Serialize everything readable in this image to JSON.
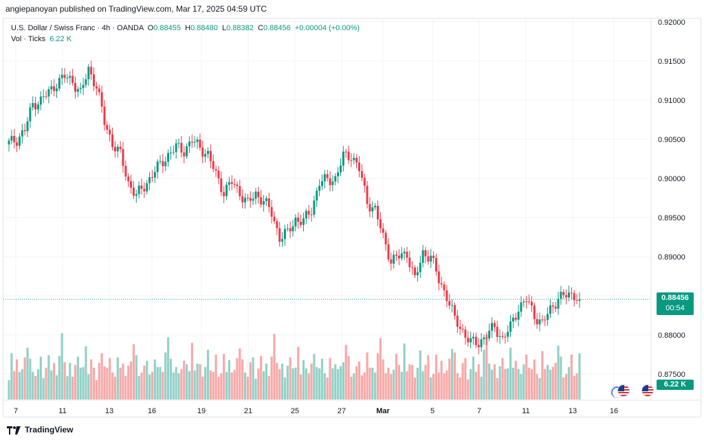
{
  "header": {
    "publisher_line": "angiepanoyan published on TradingView.com, Mar 17, 2025 04:59 UTC"
  },
  "legend": {
    "symbol": "U.S. Dollar / Swiss Franc · 4h · OANDA",
    "open_label": "O",
    "open": "0.88455",
    "high_label": "H",
    "high": "0.88480",
    "low_label": "L",
    "low": "0.88382",
    "close_label": "C",
    "close": "0.88456",
    "change": "+0.00004 (+0.00%)",
    "volume_label": "Vol · Ticks",
    "volume": "6.22 K"
  },
  "price_axis": {
    "labels": [
      "0.92000",
      "0.91500",
      "0.91000",
      "0.90500",
      "0.90000",
      "0.89500",
      "0.89000",
      "0.88500",
      "0.88000",
      "0.87500"
    ]
  },
  "current_price_tag": {
    "price": "0.88456",
    "countdown": "00:54"
  },
  "volume_tag": "6.22 K",
  "time_axis": {
    "labels": [
      "7",
      "11",
      "13",
      "16",
      "19",
      "21",
      "25",
      "27",
      "Mar",
      "5",
      "7",
      "11",
      "13",
      "16"
    ]
  },
  "footer": {
    "brand": "TradingView"
  },
  "colors": {
    "up": "#089981",
    "down": "#f23645",
    "up_vol": "#92d1c7",
    "down_vol": "#f7a9a8"
  },
  "chart_data": {
    "type": "candlestick",
    "title": "U.S. Dollar / Swiss Franc · 4h · OANDA",
    "ylim": [
      0.8735,
      0.9207
    ],
    "y_ticks": [
      0.92,
      0.915,
      0.91,
      0.905,
      0.9,
      0.895,
      0.89,
      0.885,
      0.88,
      0.875
    ],
    "x_tick_labels": [
      "7",
      "11",
      "13",
      "16",
      "19",
      "21",
      "25",
      "27",
      "Mar",
      "5",
      "7",
      "11",
      "13",
      "16"
    ],
    "last_price": 0.88456,
    "grid": true,
    "close_anchors": [
      [
        0,
        0.9045
      ],
      [
        3,
        0.905
      ],
      [
        6,
        0.9062
      ],
      [
        9,
        0.9095
      ],
      [
        12,
        0.91
      ],
      [
        15,
        0.911
      ],
      [
        18,
        0.9122
      ],
      [
        21,
        0.913
      ],
      [
        24,
        0.9125
      ],
      [
        27,
        0.9108
      ],
      [
        30,
        0.914
      ],
      [
        33,
        0.9118
      ],
      [
        36,
        0.9072
      ],
      [
        39,
        0.9045
      ],
      [
        42,
        0.903
      ],
      [
        45,
        0.8995
      ],
      [
        48,
        0.8978
      ],
      [
        51,
        0.899
      ],
      [
        54,
        0.9005
      ],
      [
        57,
        0.9018
      ],
      [
        60,
        0.903
      ],
      [
        63,
        0.904
      ],
      [
        66,
        0.9036
      ],
      [
        69,
        0.9048
      ],
      [
        72,
        0.904
      ],
      [
        75,
        0.903
      ],
      [
        78,
        0.9005
      ],
      [
        81,
        0.8983
      ],
      [
        84,
        0.8995
      ],
      [
        87,
        0.8982
      ],
      [
        90,
        0.8968
      ],
      [
        93,
        0.898
      ],
      [
        96,
        0.8972
      ],
      [
        99,
        0.8955
      ],
      [
        102,
        0.8925
      ],
      [
        105,
        0.893
      ],
      [
        108,
        0.8948
      ],
      [
        111,
        0.8945
      ],
      [
        114,
        0.896
      ],
      [
        117,
        0.8995
      ],
      [
        120,
        0.8998
      ],
      [
        123,
        0.9
      ],
      [
        126,
        0.9028
      ],
      [
        129,
        0.903
      ],
      [
        132,
        0.9012
      ],
      [
        135,
        0.897
      ],
      [
        138,
        0.896
      ],
      [
        141,
        0.8925
      ],
      [
        144,
        0.8895
      ],
      [
        147,
        0.89
      ],
      [
        150,
        0.8905
      ],
      [
        153,
        0.887
      ],
      [
        156,
        0.8905
      ],
      [
        159,
        0.89
      ],
      [
        162,
        0.887
      ],
      [
        165,
        0.885
      ],
      [
        168,
        0.882
      ],
      [
        171,
        0.8805
      ],
      [
        174,
        0.879
      ],
      [
        177,
        0.879
      ],
      [
        180,
        0.88
      ],
      [
        183,
        0.881
      ],
      [
        186,
        0.8795
      ],
      [
        189,
        0.881
      ],
      [
        192,
        0.8835
      ],
      [
        195,
        0.8845
      ],
      [
        198,
        0.8825
      ],
      [
        201,
        0.8815
      ],
      [
        204,
        0.8832
      ],
      [
        207,
        0.8848
      ],
      [
        210,
        0.885
      ],
      [
        213,
        0.8852
      ],
      [
        215,
        0.88456
      ]
    ],
    "volume_ylim": [
      0,
      140
    ],
    "volume_pattern": [
      28,
      60,
      38,
      48,
      34,
      42,
      52,
      70,
      58,
      32,
      30,
      44,
      55,
      28,
      36,
      58,
      40,
      44,
      30,
      62,
      88,
      50,
      34,
      46,
      30,
      40,
      56,
      44,
      38,
      72,
      36,
      50,
      42,
      28,
      46,
      64,
      38,
      40,
      58,
      30
    ]
  }
}
